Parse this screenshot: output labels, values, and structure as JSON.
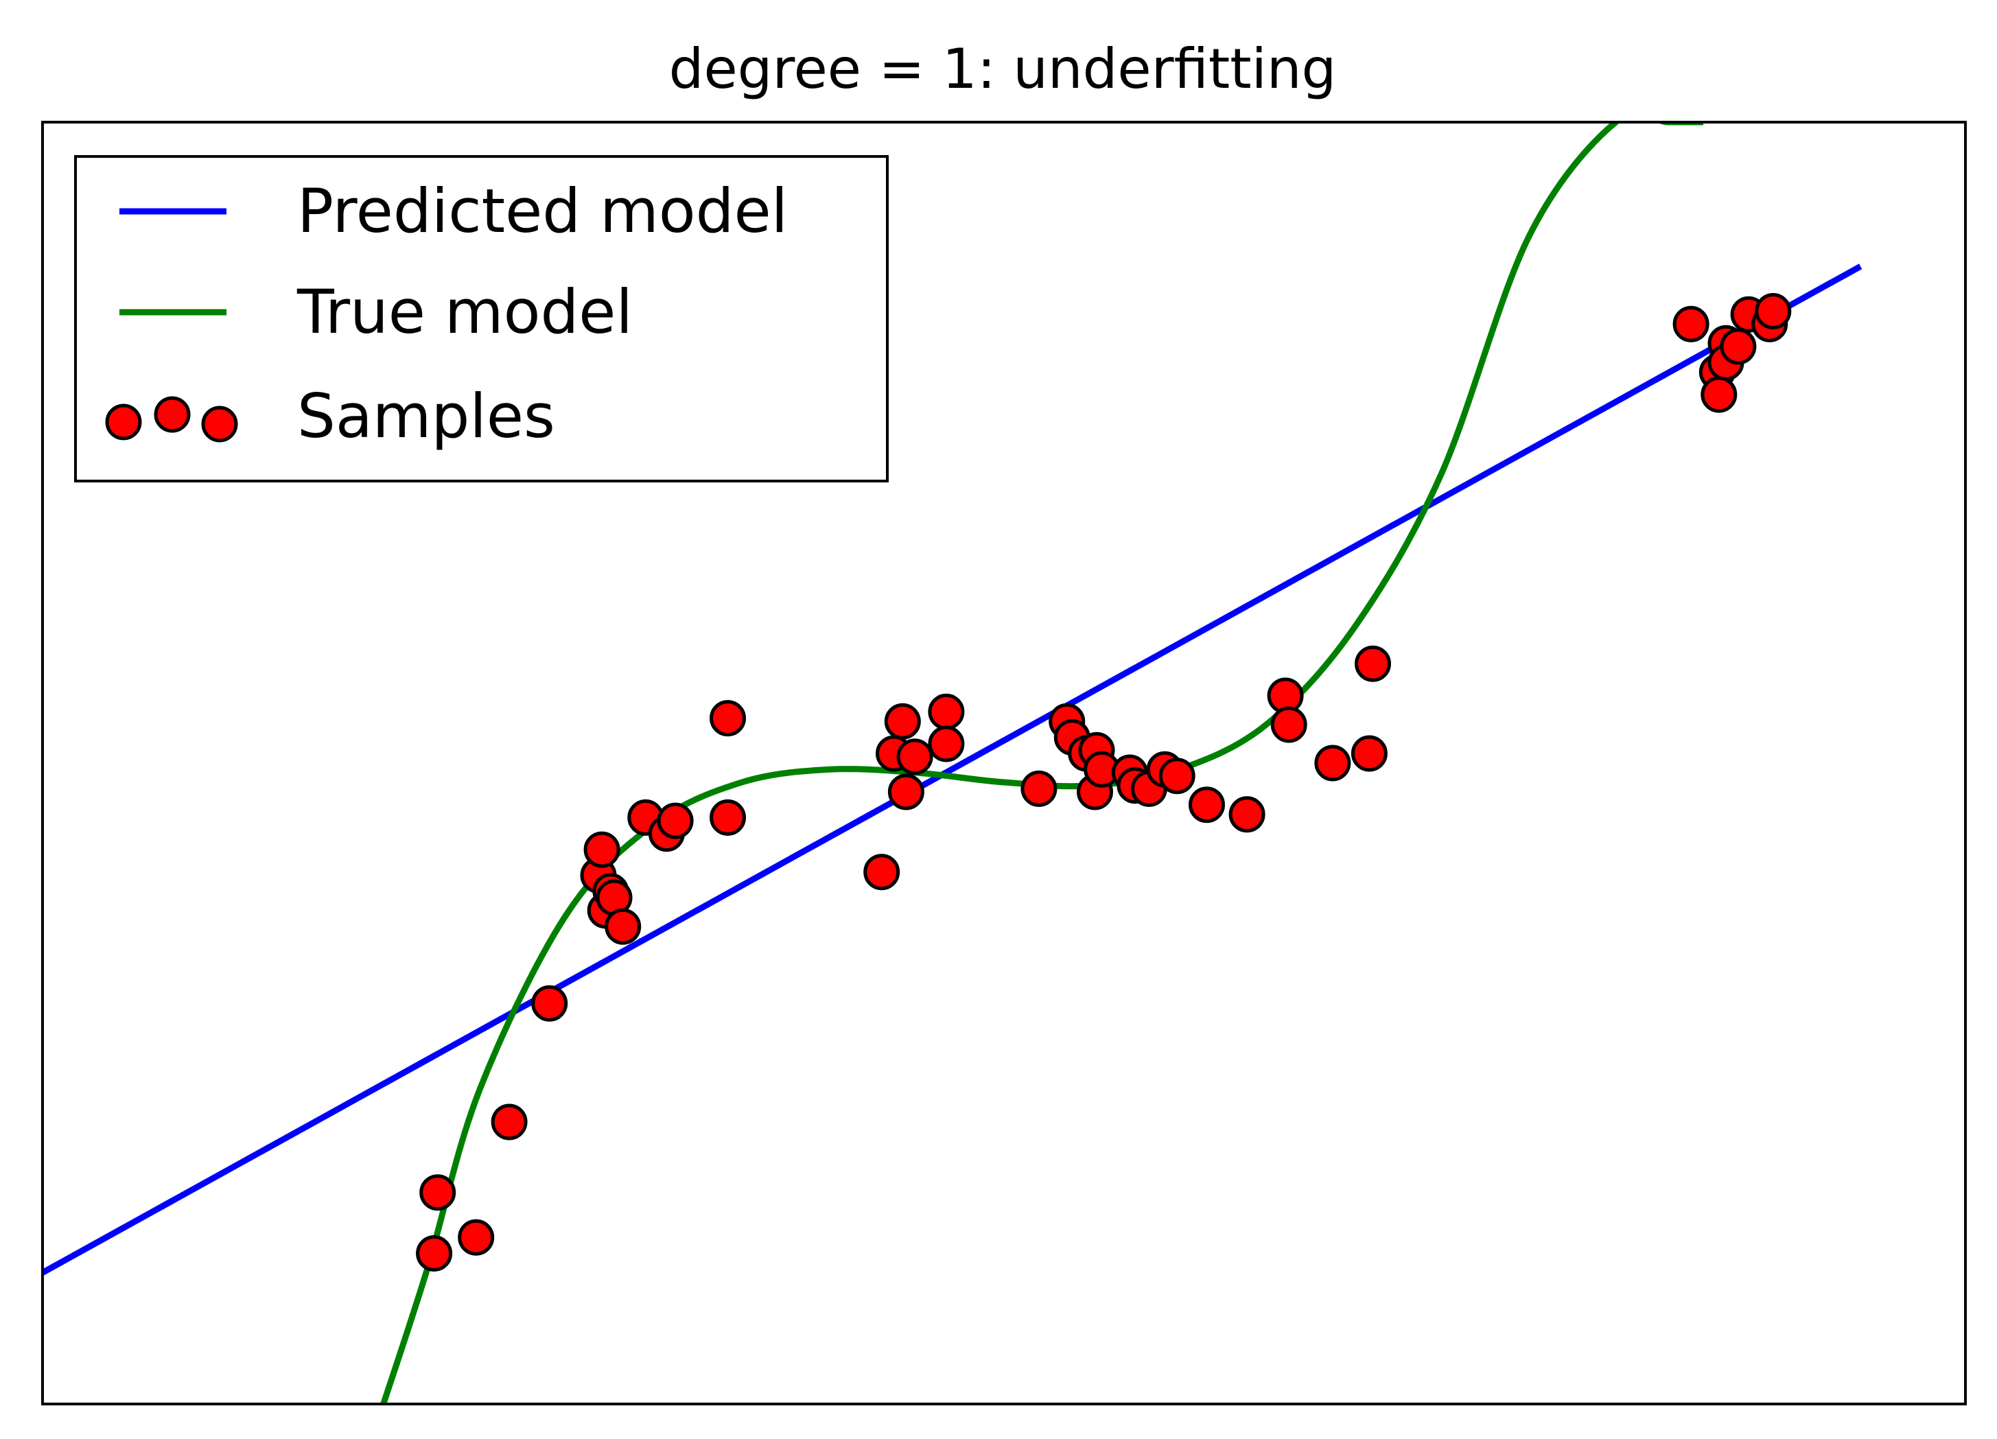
{
  "chart_data": {
    "type": "scatter",
    "title": "degree = 1: underfitting",
    "xlabel": "",
    "ylabel": "",
    "xlim": [
      -0.05,
      1.05
    ],
    "ylim": [
      -2.0,
      2.0
    ],
    "ticks_visible": false,
    "grid": false,
    "legend_position": "top-left",
    "series": [
      {
        "name": "Predicted model",
        "kind": "line",
        "color": "#0000ff",
        "x": [
          -0.05,
          0.99
        ],
        "y": [
          -1.59,
          1.55
        ]
      },
      {
        "name": "True model",
        "kind": "curve",
        "color": "#008000",
        "x": [
          0.145,
          0.17,
          0.2,
          0.25,
          0.3,
          0.35,
          0.4,
          0.45,
          0.5,
          0.55,
          0.6,
          0.65,
          0.7,
          0.75,
          0.8,
          0.85,
          0.88,
          0.9
        ],
        "y": [
          -2.0,
          -1.58,
          -1.02,
          -0.47,
          -0.19,
          -0.06,
          -0.02,
          -0.03,
          -0.06,
          -0.07,
          -0.02,
          0.12,
          0.42,
          0.9,
          1.64,
          2.0,
          2.0,
          2.0
        ]
      },
      {
        "name": "Samples",
        "kind": "scatter",
        "color": "#ff0000",
        "edge_color": "#000000",
        "x": [
          0.174,
          0.176,
          0.198,
          0.217,
          0.24,
          0.268,
          0.27,
          0.272,
          0.275,
          0.277,
          0.282,
          0.295,
          0.307,
          0.312,
          0.342,
          0.342,
          0.43,
          0.437,
          0.442,
          0.444,
          0.449,
          0.467,
          0.467,
          0.52,
          0.536,
          0.539,
          0.547,
          0.552,
          0.553,
          0.556,
          0.572,
          0.575,
          0.583,
          0.592,
          0.599,
          0.616,
          0.639,
          0.661,
          0.663,
          0.688,
          0.711,
          0.709,
          0.893,
          0.913,
          0.908,
          0.913,
          0.92,
          0.926,
          0.909,
          0.938,
          0.94
        ],
        "y": [
          -1.53,
          -1.34,
          -1.48,
          -1.12,
          -0.75,
          -0.35,
          -0.27,
          -0.46,
          -0.4,
          -0.42,
          -0.51,
          -0.17,
          -0.22,
          -0.18,
          0.14,
          -0.17,
          -0.34,
          0.03,
          0.13,
          -0.09,
          0.02,
          0.16,
          0.06,
          -0.08,
          0.13,
          0.08,
          0.03,
          -0.09,
          0.04,
          -0.02,
          -0.03,
          -0.07,
          -0.08,
          -0.02,
          -0.04,
          -0.13,
          -0.16,
          0.21,
          0.12,
          0.0,
          0.31,
          0.03,
          1.37,
          1.31,
          1.22,
          1.25,
          1.3,
          1.4,
          1.15,
          1.37,
          1.41
        ]
      }
    ]
  }
}
